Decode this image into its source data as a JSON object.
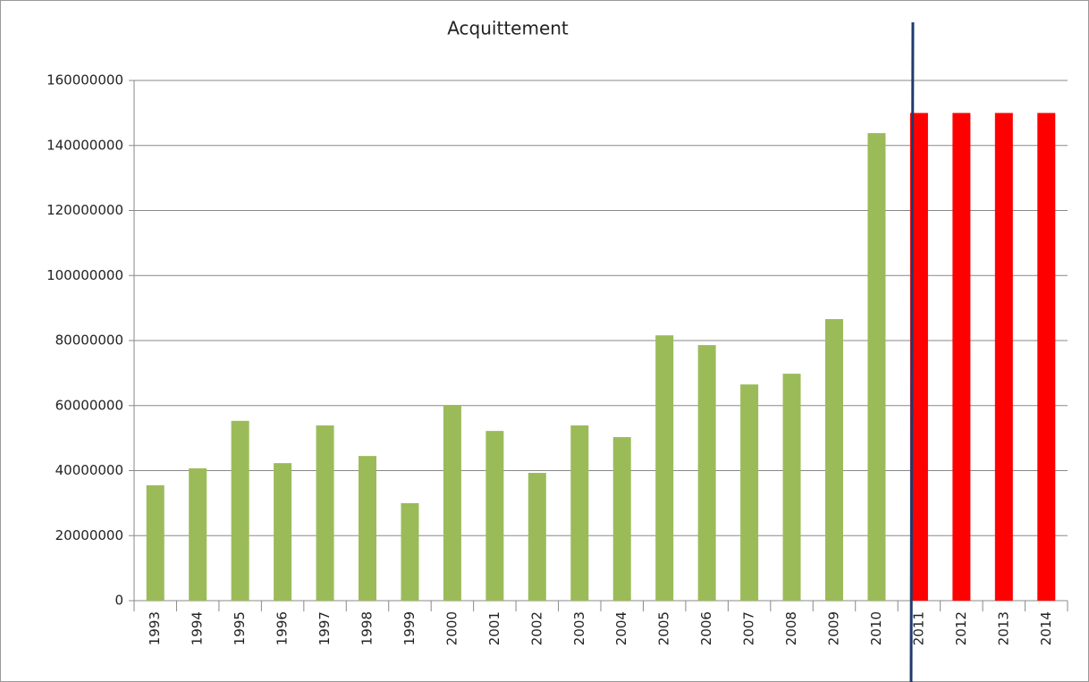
{
  "chart_data": {
    "type": "bar",
    "title": "Acquittement",
    "categories": [
      "1993",
      "1994",
      "1995",
      "1996",
      "1997",
      "1998",
      "1999",
      "2000",
      "2001",
      "2002",
      "2003",
      "2004",
      "2005",
      "2006",
      "2007",
      "2008",
      "2009",
      "2010",
      "2011",
      "2012",
      "2013",
      "2014"
    ],
    "values": [
      35500000,
      40700000,
      55300000,
      42300000,
      53900000,
      44500000,
      30000000,
      60200000,
      52200000,
      39300000,
      53900000,
      50300000,
      81600000,
      78600000,
      66500000,
      69800000,
      86600000,
      143800000,
      150000000,
      150000000,
      150000000,
      150000000
    ],
    "colors": [
      "#9bbb59",
      "#9bbb59",
      "#9bbb59",
      "#9bbb59",
      "#9bbb59",
      "#9bbb59",
      "#9bbb59",
      "#9bbb59",
      "#9bbb59",
      "#9bbb59",
      "#9bbb59",
      "#9bbb59",
      "#9bbb59",
      "#9bbb59",
      "#9bbb59",
      "#9bbb59",
      "#9bbb59",
      "#9bbb59",
      "#ff0000",
      "#ff0000",
      "#ff0000",
      "#ff0000"
    ],
    "ylim": [
      0,
      160000000
    ],
    "yticks": [
      0,
      20000000,
      40000000,
      60000000,
      80000000,
      100000000,
      120000000,
      140000000,
      160000000
    ],
    "grid": true
  }
}
